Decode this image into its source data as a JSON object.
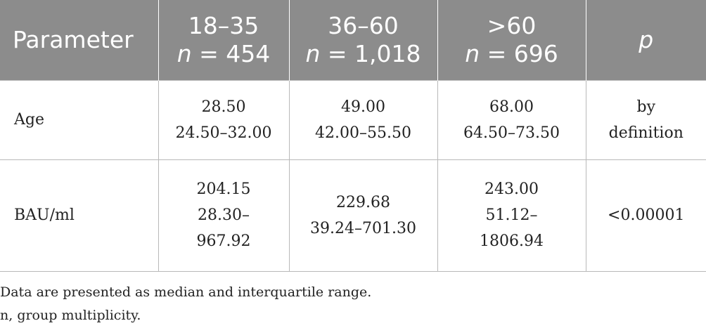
{
  "table": {
    "header": {
      "parameter": "Parameter",
      "groups": [
        {
          "range": "18–35",
          "n_label": "n",
          "n_value": " = 454"
        },
        {
          "range": "36–60",
          "n_label": "n",
          "n_value": " = 1,018"
        },
        {
          "range": ">60",
          "n_label": "n",
          "n_value": " = 696"
        }
      ],
      "p": "p"
    },
    "rows": [
      {
        "parameter": "Age",
        "cells": [
          {
            "median": "28.50",
            "iqr_a": "24.50–32.00",
            "iqr_b": ""
          },
          {
            "median": "49.00",
            "iqr_a": "42.00–55.50",
            "iqr_b": ""
          },
          {
            "median": "68.00",
            "iqr_a": "64.50–73.50",
            "iqr_b": ""
          }
        ],
        "p_a": "by",
        "p_b": "definition"
      },
      {
        "parameter": "BAU/ml",
        "cells": [
          {
            "median": "204.15",
            "iqr_a": "28.30–",
            "iqr_b": "967.92"
          },
          {
            "median": "229.68",
            "iqr_a": "39.24–701.30",
            "iqr_b": ""
          },
          {
            "median": "243.00",
            "iqr_a": "51.12–",
            "iqr_b": "1806.94"
          }
        ],
        "p_a": "<0.00001",
        "p_b": ""
      }
    ]
  },
  "footnotes": [
    "Data are presented as median and interquartile range.",
    "n, group multiplicity."
  ]
}
